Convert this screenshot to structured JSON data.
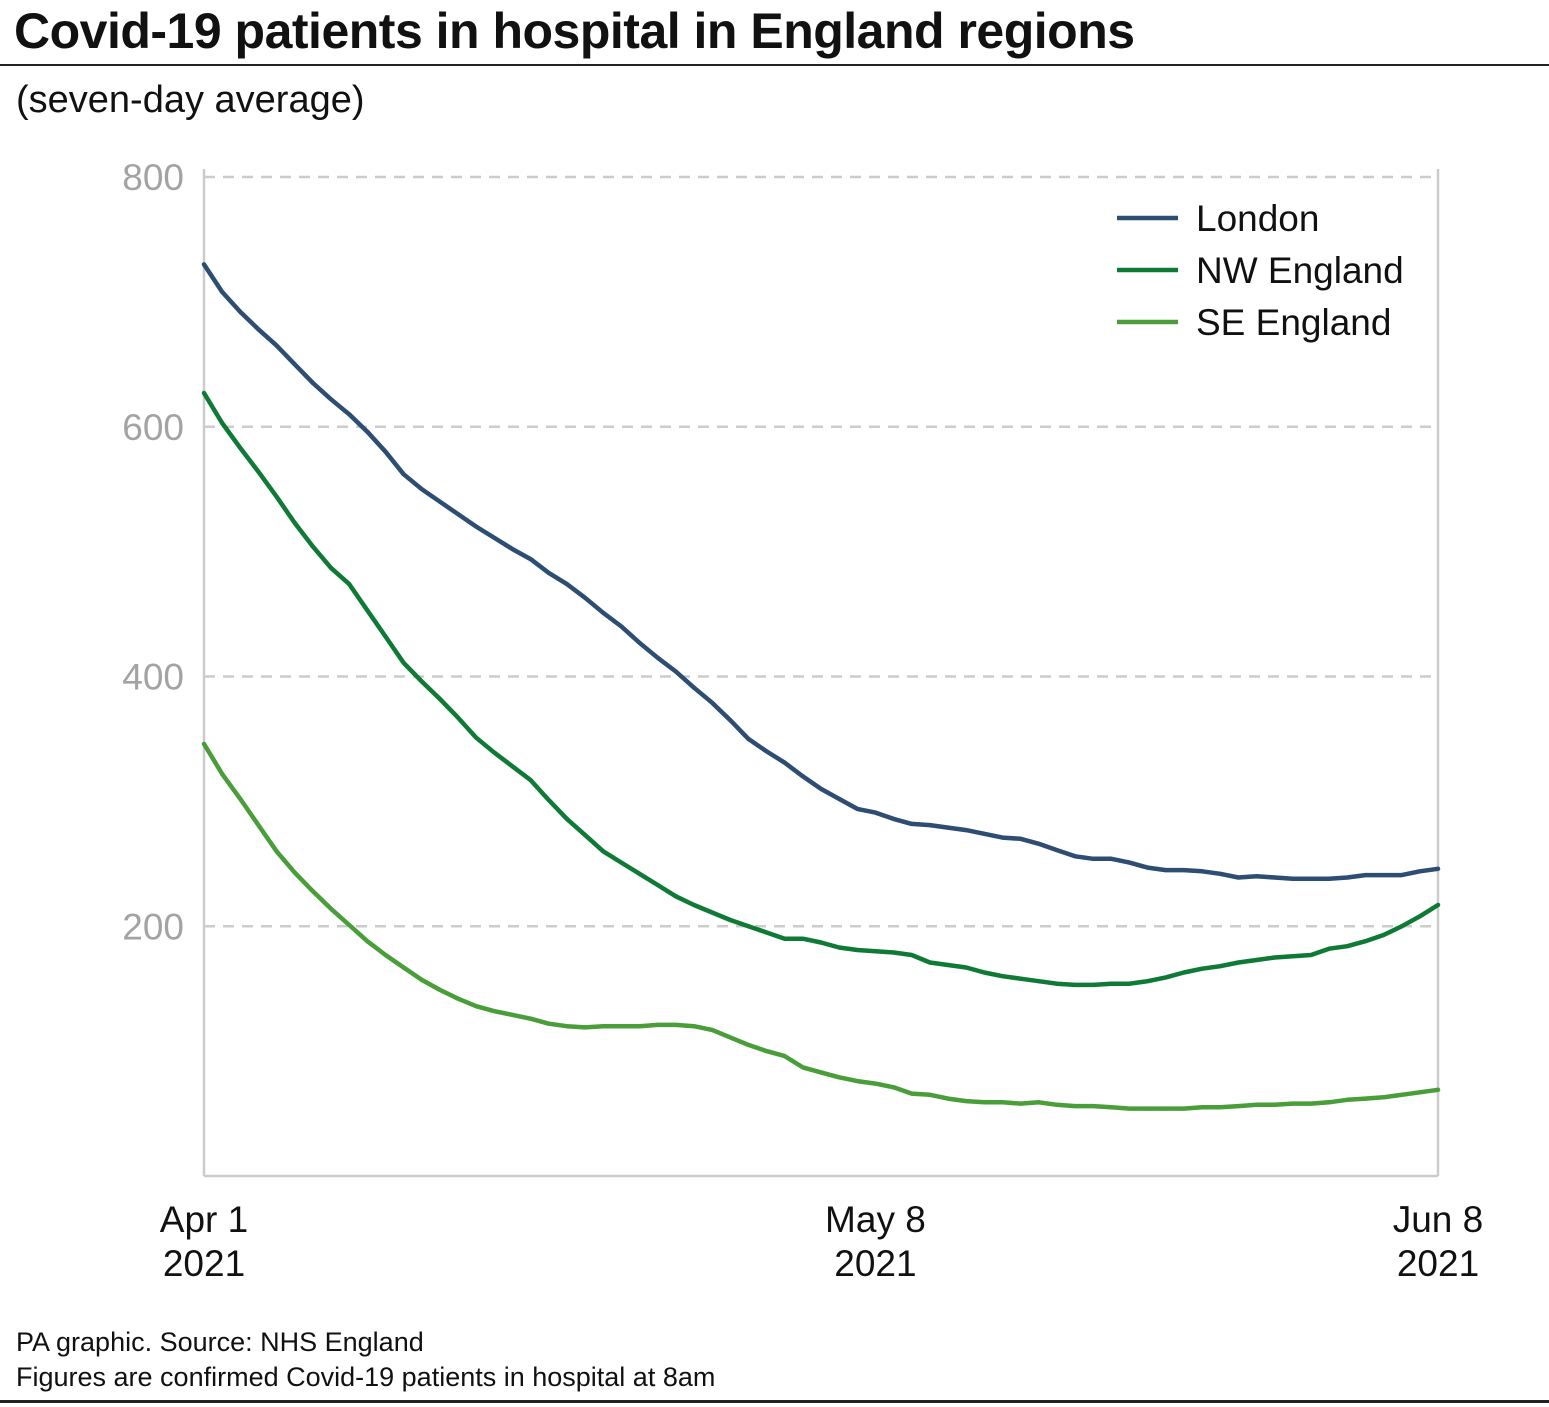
{
  "header": {
    "title": "Covid-19 patients in hospital in England regions",
    "subtitle": "(seven-day average)"
  },
  "footer": {
    "source": "PA graphic. Source: NHS England",
    "note": "Figures are confirmed Covid-19 patients in hospital at 8am"
  },
  "colors": {
    "London": "#2e4d73",
    "NW England": "#0f7a35",
    "SE England": "#4a9e3a",
    "grid": "#cccccc",
    "axis": "#cccccc"
  },
  "chart_data": {
    "type": "line",
    "title": "Covid-19 patients in hospital in England regions",
    "subtitle": "(seven-day average)",
    "xlabel": "",
    "ylabel": "",
    "x_start": "2021-04-01",
    "x_end": "2021-06-08",
    "x_range_days": [
      0,
      68
    ],
    "ylim": [
      0,
      800
    ],
    "y_ticks": [
      {
        "value": 200,
        "label": "200"
      },
      {
        "value": 400,
        "label": "400"
      },
      {
        "value": 600,
        "label": "600"
      },
      {
        "value": 800,
        "label": "800"
      }
    ],
    "x_ticks": [
      {
        "day": 0,
        "line1": "Apr 1",
        "line2": "2021"
      },
      {
        "day": 37,
        "line1": "May 8",
        "line2": "2021"
      },
      {
        "day": 68,
        "line1": "Jun 8",
        "line2": "2021"
      }
    ],
    "grid": true,
    "legend_position": "top-right",
    "series": [
      {
        "name": "London",
        "x": [
          0,
          1,
          2,
          3,
          4,
          5,
          6,
          7,
          8,
          9,
          10,
          11,
          12,
          13,
          14,
          15,
          16,
          17,
          18,
          19,
          20,
          21,
          22,
          23,
          24,
          25,
          26,
          27,
          28,
          29,
          30,
          31,
          32,
          33,
          34,
          35,
          36,
          37,
          38,
          39,
          40,
          41,
          42,
          43,
          44,
          45,
          46,
          47,
          48,
          49,
          50,
          51,
          52,
          53,
          54,
          55,
          56,
          57,
          58,
          59,
          60,
          61,
          62,
          63,
          64,
          65,
          66,
          67,
          68
        ],
        "values": [
          730,
          708,
          692,
          678,
          665,
          650,
          635,
          622,
          610,
          596,
          580,
          562,
          550,
          540,
          530,
          520,
          511,
          502,
          494,
          483,
          474,
          463,
          451,
          440,
          427,
          415,
          404,
          391,
          379,
          365,
          350,
          340,
          331,
          320,
          310,
          302,
          294,
          291,
          286,
          282,
          281,
          279,
          277,
          274,
          271,
          270,
          266,
          261,
          256,
          254,
          254,
          251,
          247,
          245,
          245,
          244,
          242,
          239,
          240,
          239,
          238,
          238,
          238,
          239,
          241,
          241,
          241,
          244,
          246
        ]
      },
      {
        "name": "NW England",
        "x": [
          0,
          1,
          2,
          3,
          4,
          5,
          6,
          7,
          8,
          9,
          10,
          11,
          12,
          13,
          14,
          15,
          16,
          17,
          18,
          19,
          20,
          21,
          22,
          23,
          24,
          25,
          26,
          27,
          28,
          29,
          30,
          31,
          32,
          33,
          34,
          35,
          36,
          37,
          38,
          39,
          40,
          41,
          42,
          43,
          44,
          45,
          46,
          47,
          48,
          49,
          50,
          51,
          52,
          53,
          54,
          55,
          56,
          57,
          58,
          59,
          60,
          61,
          62,
          63,
          64,
          65,
          66,
          67,
          68
        ],
        "values": [
          627,
          603,
          583,
          564,
          544,
          523,
          504,
          487,
          474,
          453,
          432,
          411,
          396,
          382,
          367,
          351,
          339,
          328,
          317,
          301,
          286,
          273,
          260,
          251,
          242,
          233,
          224,
          217,
          211,
          205,
          200,
          195,
          190,
          190,
          187,
          183,
          181,
          180,
          179,
          177,
          171,
          169,
          167,
          163,
          160,
          158,
          156,
          154,
          153,
          153,
          154,
          154,
          156,
          159,
          163,
          166,
          168,
          171,
          173,
          175,
          176,
          177,
          182,
          184,
          188,
          193,
          200,
          208,
          217
        ]
      },
      {
        "name": "SE England",
        "x": [
          0,
          1,
          2,
          3,
          4,
          5,
          6,
          7,
          8,
          9,
          10,
          11,
          12,
          13,
          14,
          15,
          16,
          17,
          18,
          19,
          20,
          21,
          22,
          23,
          24,
          25,
          26,
          27,
          28,
          29,
          30,
          31,
          32,
          33,
          34,
          35,
          36,
          37,
          38,
          39,
          40,
          41,
          42,
          43,
          44,
          45,
          46,
          47,
          48,
          49,
          50,
          51,
          52,
          53,
          54,
          55,
          56,
          57,
          58,
          59,
          60,
          61,
          62,
          63,
          64,
          65,
          66,
          67,
          68
        ],
        "values": [
          346,
          322,
          302,
          281,
          260,
          243,
          228,
          214,
          201,
          188,
          177,
          167,
          157,
          149,
          142,
          136,
          132,
          129,
          126,
          122,
          120,
          119,
          120,
          120,
          120,
          121,
          121,
          120,
          117,
          111,
          105,
          100,
          96,
          87,
          83,
          79,
          76,
          74,
          71,
          66,
          65,
          62,
          60,
          59,
          59,
          58,
          59,
          57,
          56,
          56,
          55,
          54,
          54,
          54,
          54,
          55,
          55,
          56,
          57,
          57,
          58,
          58,
          59,
          61,
          62,
          63,
          65,
          67,
          69
        ]
      }
    ]
  }
}
